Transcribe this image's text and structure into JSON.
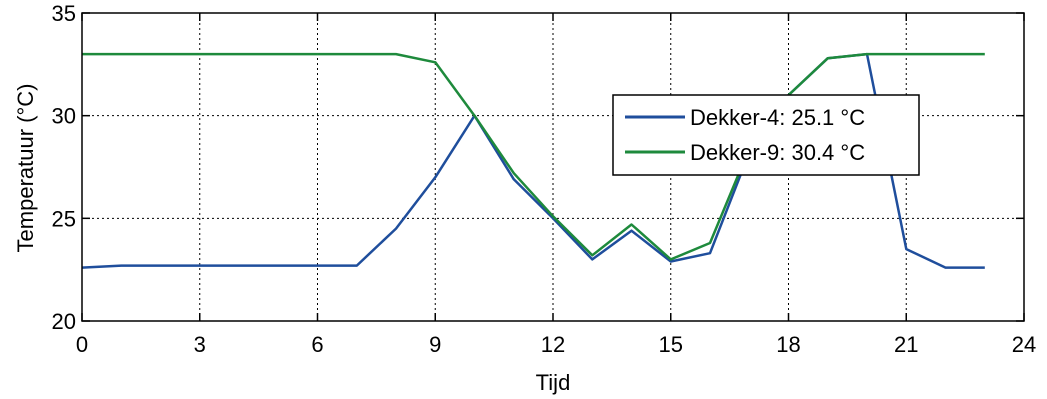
{
  "chart_data": {
    "type": "line",
    "title": "",
    "xlabel": "Tijd",
    "ylabel": "Temperatuur (°C)",
    "xlim": [
      0,
      24
    ],
    "ylim": [
      20,
      35
    ],
    "xticks": [
      0,
      3,
      6,
      9,
      12,
      15,
      18,
      21,
      24
    ],
    "yticks": [
      20,
      25,
      30,
      35
    ],
    "grid": true,
    "legend_position": "upper-right",
    "x": [
      0,
      1,
      2,
      3,
      4,
      5,
      6,
      7,
      8,
      9,
      10,
      11,
      12,
      13,
      14,
      15,
      16,
      17,
      18,
      19,
      20,
      21,
      22,
      23
    ],
    "series": [
      {
        "name": "Dekker-4: 25.1 °C",
        "color": "#1f4e9c",
        "values": [
          22.6,
          22.7,
          22.7,
          22.7,
          22.7,
          22.7,
          22.7,
          22.7,
          24.5,
          27.0,
          30.0,
          26.9,
          25.0,
          23.0,
          24.4,
          22.9,
          23.3,
          28.2,
          31.0,
          32.8,
          33.0,
          23.5,
          22.6,
          22.6
        ]
      },
      {
        "name": "Dekker-9: 30.4 °C",
        "color": "#1e8a3c",
        "values": [
          33.0,
          33.0,
          33.0,
          33.0,
          33.0,
          33.0,
          33.0,
          33.0,
          33.0,
          32.6,
          30.0,
          27.2,
          25.1,
          23.2,
          24.7,
          23.0,
          23.8,
          28.4,
          31.0,
          32.8,
          33.0,
          33.0,
          33.0,
          33.0
        ]
      }
    ]
  }
}
